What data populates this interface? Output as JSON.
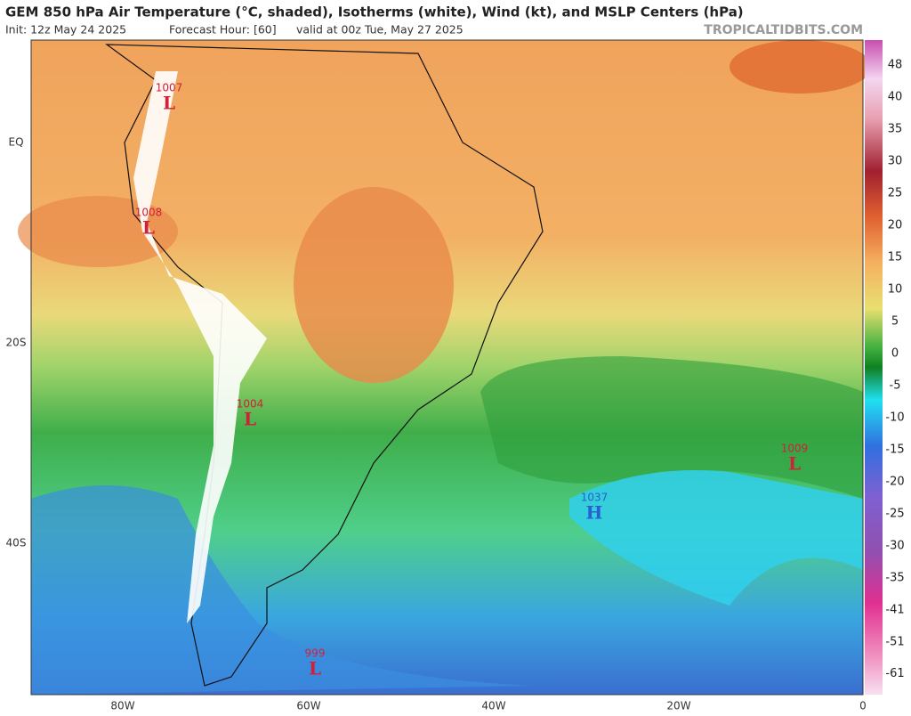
{
  "header": {
    "title": "GEM 850 hPa Air Temperature (°C, shaded), Isotherms (white), Wind (kt), and MSLP Centers (hPa)",
    "init": "Init: 12z May 24 2025",
    "forecast_hour": "Forecast Hour: [60]",
    "valid": "valid at 00z Tue, May 27 2025",
    "credit": "TROPICALTIDBITS.COM"
  },
  "map": {
    "lon_labels": [
      "80W",
      "60W",
      "40W",
      "20W",
      "0"
    ],
    "lat_labels": [
      "EQ",
      "20S",
      "40S"
    ],
    "centers": [
      {
        "type": "L",
        "pressure": 1007
      },
      {
        "type": "L",
        "pressure": 1008
      },
      {
        "type": "L",
        "pressure": 1004
      },
      {
        "type": "L",
        "pressure": 1009
      },
      {
        "type": "H",
        "pressure": 1037
      },
      {
        "type": "L",
        "pressure": 999
      }
    ]
  },
  "colorbar": {
    "ticks": [
      48,
      40,
      35,
      30,
      25,
      20,
      15,
      10,
      5,
      0,
      -5,
      -10,
      -15,
      -20,
      -25,
      -30,
      -35,
      -41,
      -51,
      -61
    ]
  }
}
